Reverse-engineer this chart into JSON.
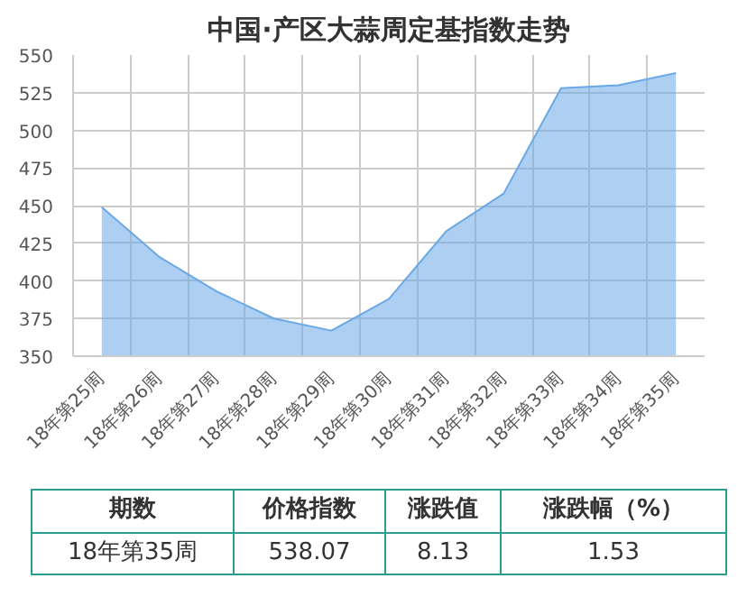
{
  "chart_data": {
    "type": "area",
    "title": "中国·产区大蒜周定基指数走势",
    "categories": [
      "18年第25周",
      "18年第26周",
      "18年第27周",
      "18年第28周",
      "18年第29周",
      "18年第30周",
      "18年第31周",
      "18年第32周",
      "18年第33周",
      "18年第34周",
      "18年第35周"
    ],
    "values": [
      449,
      416,
      393,
      375,
      367,
      388,
      433,
      458,
      528,
      530,
      538
    ],
    "color": "#6aa8e6",
    "ylim": [
      350,
      550
    ],
    "yticks": [
      350,
      375,
      400,
      425,
      450,
      475,
      500,
      525,
      550
    ],
    "grid": true,
    "annotations": [
      "期数",
      "价格指数",
      "涨跌值",
      "涨跌幅（%）",
      "18年第35周",
      "538.07",
      "8.13",
      "1.53"
    ]
  }
}
